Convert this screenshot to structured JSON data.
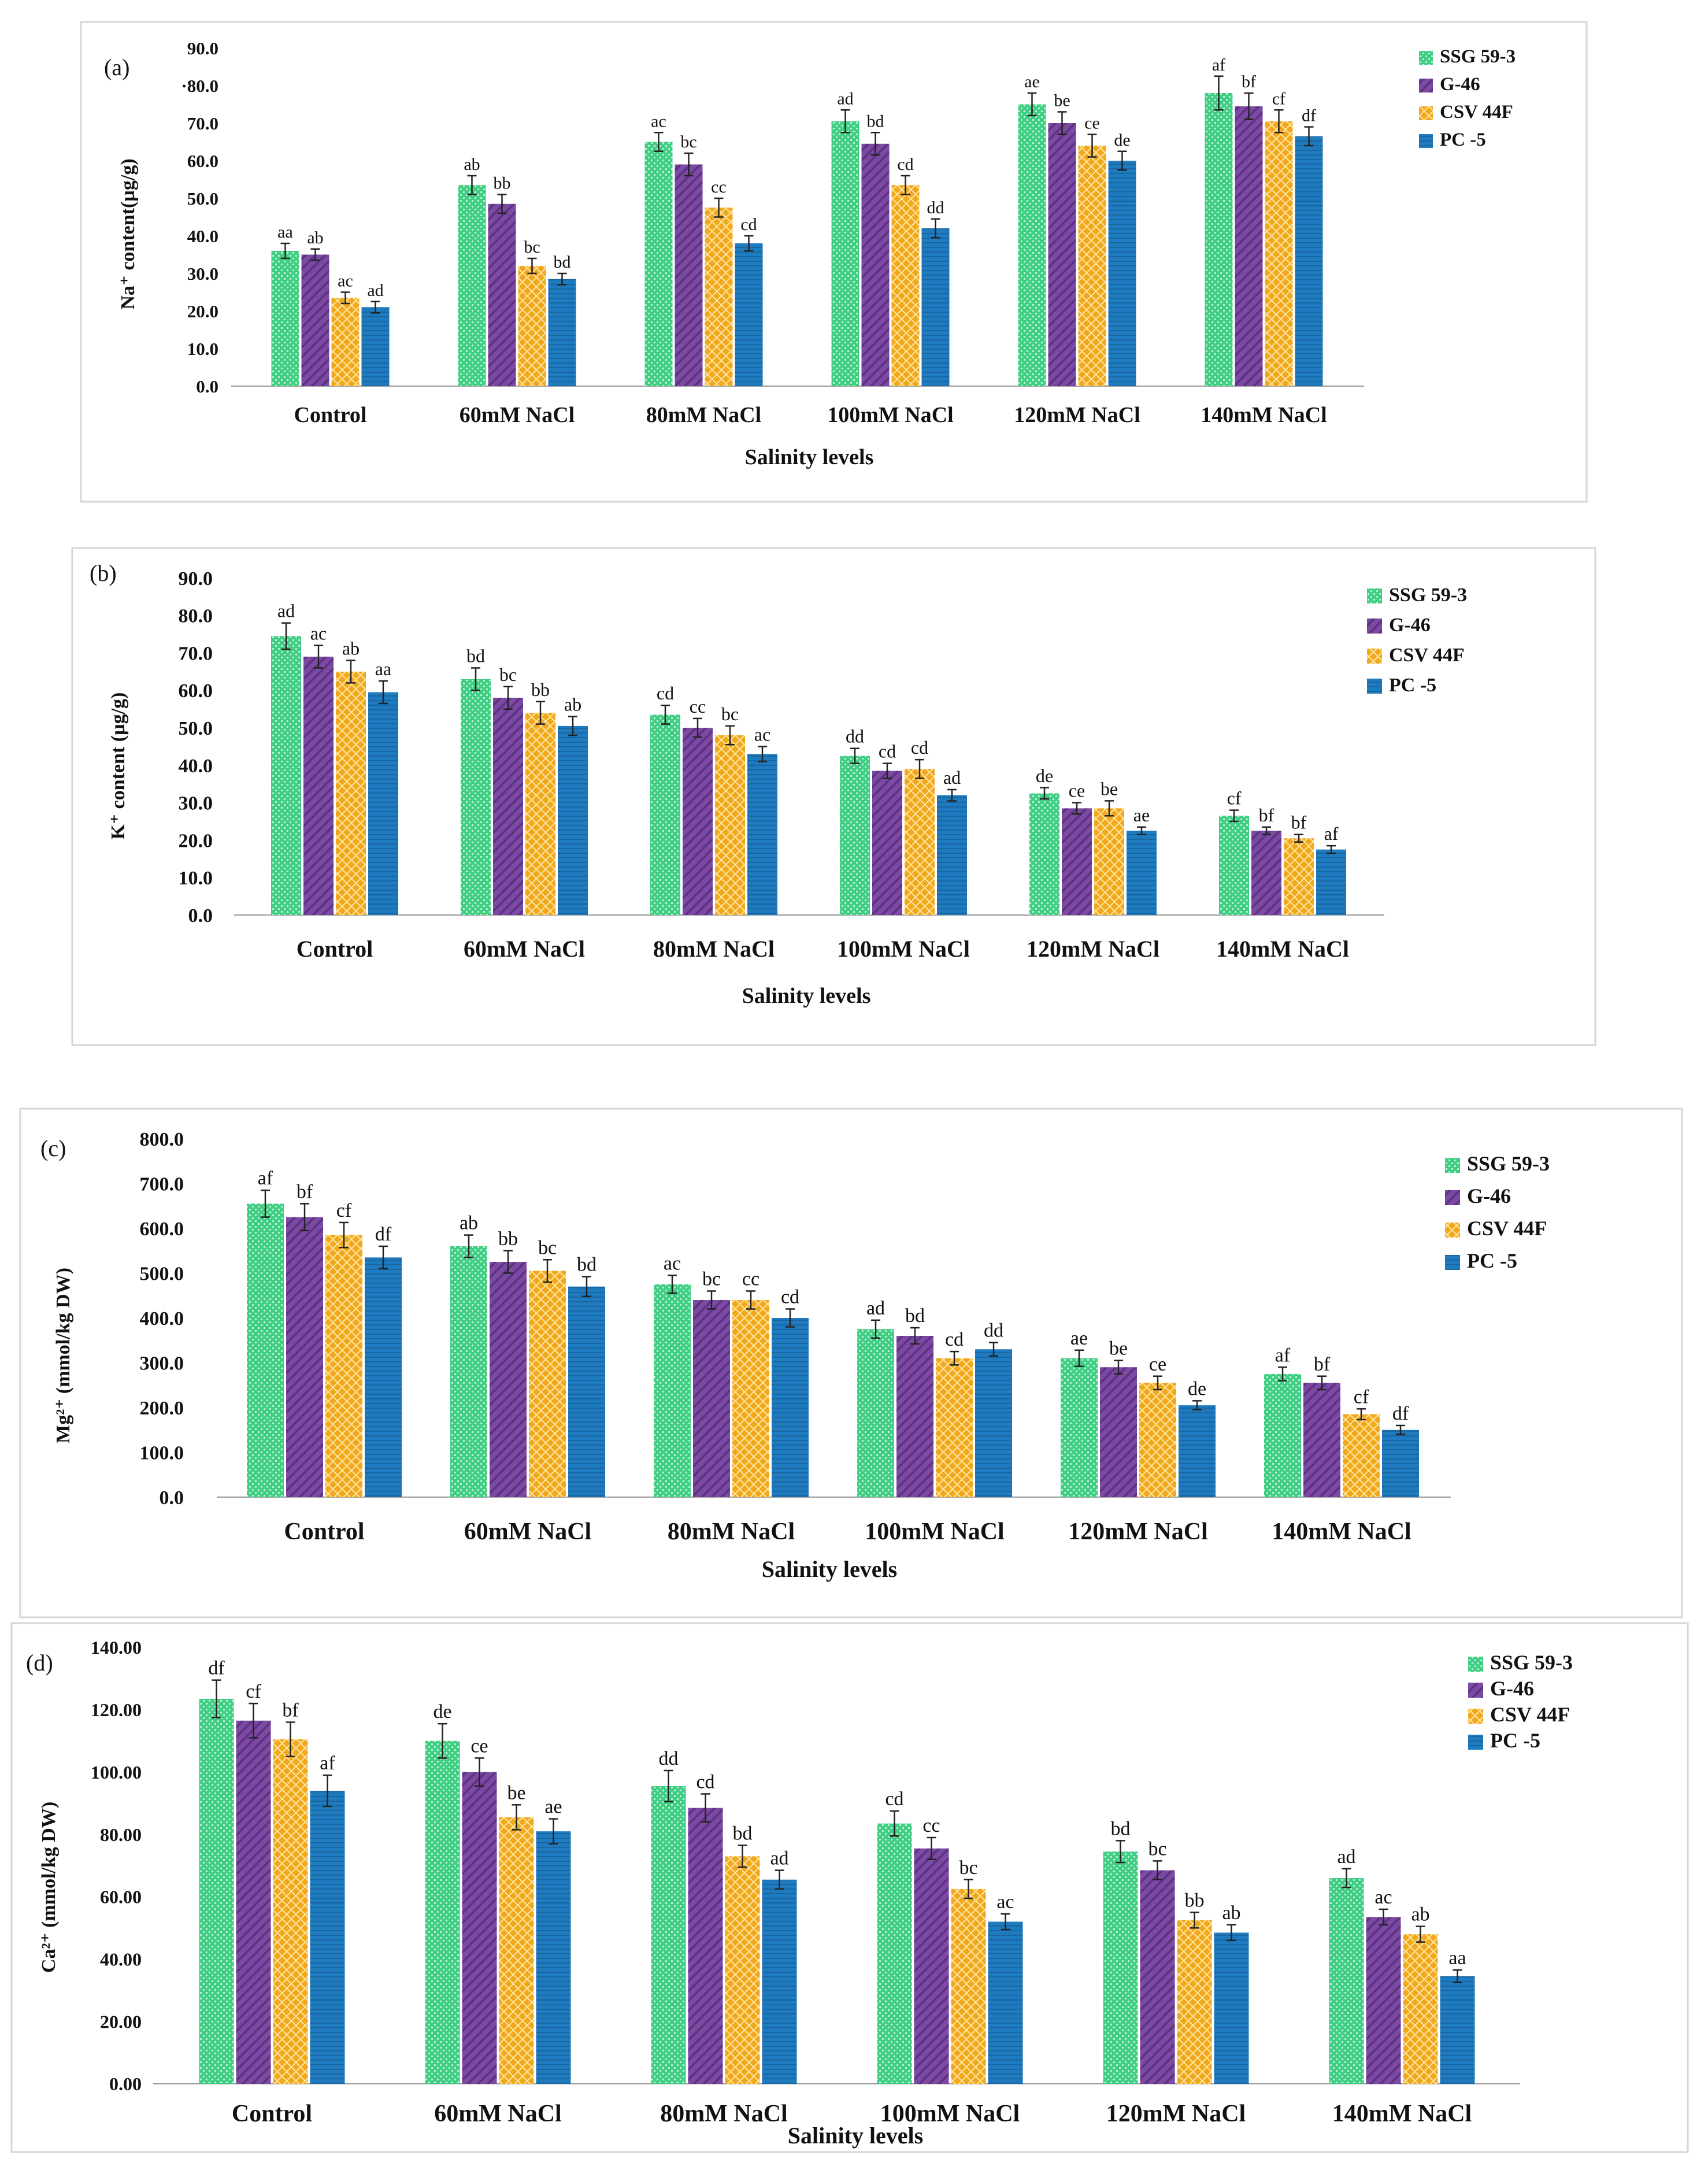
{
  "colors": {
    "SSG 59-3": "#3fce84",
    "G-46": "#7c4aa4",
    "CSV 44F": "#f2a81c",
    "PC -5": "#1f7bbf",
    "panel_border": "#d6d6d6",
    "axis": "#9a9a9a",
    "text": "#111111"
  },
  "chart_data": [
    {
      "type": "bar",
      "panel_label": "(a)",
      "title": "",
      "ylabel": "Na⁺ content(µg/g)",
      "xlabel": "Salinity levels",
      "categories": [
        "Control",
        "60mM NaCl",
        "80mM NaCl",
        "100mM NaCl",
        "120mM NaCl",
        "140mM NaCl"
      ],
      "yticks": [
        "0.0",
        "10.0",
        "20.0",
        "30.0",
        "40.0",
        "50.0",
        "60.0",
        "70.0",
        "·80.0",
        "90.0"
      ],
      "ylim": [
        0,
        90
      ],
      "legend_position": "top-right",
      "series": [
        {
          "name": "SSG 59-3",
          "values": [
            36,
            53.5,
            65,
            70.5,
            75,
            78
          ],
          "errors": [
            2,
            2.5,
            2.5,
            3,
            3,
            4.5
          ],
          "labels": [
            "aa",
            "ab",
            "ac",
            "ad",
            "ae",
            "af"
          ]
        },
        {
          "name": "G-46",
          "values": [
            35,
            48.5,
            59,
            64.5,
            70,
            74.5
          ],
          "errors": [
            1.5,
            2.5,
            3,
            3,
            3,
            3.5
          ],
          "labels": [
            "ab",
            "bb",
            "bc",
            "bd",
            "be",
            "bf"
          ]
        },
        {
          "name": "CSV 44F",
          "values": [
            23.5,
            32,
            47.5,
            53.5,
            64,
            70.5
          ],
          "errors": [
            1.5,
            2,
            2.5,
            2.5,
            3,
            3
          ],
          "labels": [
            "ac",
            "bc",
            "cc",
            "cd",
            "ce",
            "cf"
          ]
        },
        {
          "name": "PC -5",
          "values": [
            21,
            28.5,
            38,
            42,
            60,
            66.5
          ],
          "errors": [
            1.5,
            1.5,
            2,
            2.5,
            2.5,
            2.5
          ],
          "labels": [
            "ad",
            "bd",
            "cd",
            "dd",
            "de",
            "df"
          ]
        }
      ]
    },
    {
      "type": "bar",
      "panel_label": "(b)",
      "title": "",
      "ylabel": "K⁺ content (µg/g)",
      "xlabel": "Salinity levels",
      "categories": [
        "Control",
        "60mM NaCl",
        "80mM NaCl",
        "100mM NaCl",
        "120mM NaCl",
        "140mM NaCl"
      ],
      "yticks": [
        "0.0",
        "10.0",
        "20.0",
        "30.0",
        "40.0",
        "50.0",
        "60.0",
        "70.0",
        "80.0",
        "90.0"
      ],
      "ylim": [
        0,
        90
      ],
      "legend_position": "top-right",
      "series": [
        {
          "name": "SSG 59-3",
          "values": [
            74.5,
            63,
            53.5,
            42.5,
            32.5,
            26.5
          ],
          "errors": [
            3.5,
            3,
            2.5,
            2,
            1.5,
            1.5
          ],
          "labels": [
            "ad",
            "bd",
            "cd",
            "dd",
            "de",
            "cf"
          ]
        },
        {
          "name": "G-46",
          "values": [
            69,
            58,
            50,
            38.5,
            28.5,
            22.5
          ],
          "errors": [
            3,
            3,
            2.5,
            2,
            1.5,
            1
          ],
          "labels": [
            "ac",
            "bc",
            "cc",
            "cd",
            "ce",
            "bf"
          ]
        },
        {
          "name": "CSV 44F",
          "values": [
            65,
            54,
            48,
            39,
            28.5,
            20.5
          ],
          "errors": [
            3,
            3,
            2.5,
            2.5,
            2,
            1
          ],
          "labels": [
            "ab",
            "bb",
            "bc",
            "cd",
            "be",
            "bf"
          ]
        },
        {
          "name": "PC -5",
          "values": [
            59.5,
            50.5,
            43,
            32,
            22.5,
            17.5
          ],
          "errors": [
            3,
            2.5,
            2,
            1.5,
            1,
            1
          ],
          "labels": [
            "aa",
            "ab",
            "ac",
            "ad",
            "ae",
            "af"
          ]
        }
      ]
    },
    {
      "type": "bar",
      "panel_label": "(c)",
      "title": "",
      "ylabel": "Mg²⁺ (mmol/kg DW)",
      "xlabel": "Salinity levels",
      "categories": [
        "Control",
        "60mM NaCl",
        "80mM NaCl",
        "100mM NaCl",
        "120mM NaCl",
        "140mM NaCl"
      ],
      "yticks": [
        "0.0",
        "100.0",
        "200.0",
        "300.0",
        "400.0",
        "500.0",
        "600.0",
        "700.0",
        "800.0"
      ],
      "ylim": [
        0,
        800
      ],
      "legend_position": "top-right",
      "series": [
        {
          "name": "SSG 59-3",
          "values": [
            655,
            560,
            475,
            375,
            310,
            275
          ],
          "errors": [
            30,
            25,
            20,
            20,
            18,
            15
          ],
          "labels": [
            "af",
            "ab",
            "ac",
            "ad",
            "ae",
            "af"
          ]
        },
        {
          "name": "G-46",
          "values": [
            625,
            525,
            440,
            360,
            290,
            255
          ],
          "errors": [
            30,
            25,
            20,
            18,
            15,
            15
          ],
          "labels": [
            "bf",
            "bb",
            "bc",
            "bd",
            "be",
            "bf"
          ]
        },
        {
          "name": "CSV 44F",
          "values": [
            585,
            505,
            440,
            310,
            255,
            185
          ],
          "errors": [
            28,
            25,
            20,
            15,
            15,
            12
          ],
          "labels": [
            "cf",
            "bc",
            "cc",
            "cd",
            "ce",
            "cf"
          ]
        },
        {
          "name": "PC -5",
          "values": [
            535,
            470,
            400,
            330,
            205,
            150
          ],
          "errors": [
            25,
            22,
            20,
            15,
            10,
            10
          ],
          "labels": [
            "df",
            "bd",
            "cd",
            "dd",
            "de",
            "df"
          ]
        }
      ]
    },
    {
      "type": "bar",
      "panel_label": "(d)",
      "title": "",
      "ylabel": "Ca²⁺ (mmol/kg DW)",
      "xlabel": "Salinity levels",
      "categories": [
        "Control",
        "60mM NaCl",
        "80mM NaCl",
        "100mM NaCl",
        "120mM NaCl",
        "140mM NaCl"
      ],
      "yticks": [
        "0.00",
        "20.00",
        "40.00",
        "60.00",
        "80.00",
        "100.00",
        "120.00",
        "140.00"
      ],
      "ylim": [
        0,
        140
      ],
      "legend_position": "top-right",
      "series": [
        {
          "name": "SSG 59-3",
          "values": [
            123.5,
            110,
            95.5,
            83.5,
            74.5,
            66
          ],
          "errors": [
            6,
            5.5,
            5,
            4,
            3.5,
            3
          ],
          "labels": [
            "df",
            "de",
            "dd",
            "cd",
            "bd",
            "ad"
          ]
        },
        {
          "name": "G-46",
          "values": [
            116.5,
            100,
            88.5,
            75.5,
            68.5,
            53.5
          ],
          "errors": [
            5.5,
            4.5,
            4.5,
            3.5,
            3,
            2.5
          ],
          "labels": [
            "cf",
            "ce",
            "cd",
            "cc",
            "bc",
            "ac"
          ]
        },
        {
          "name": "CSV 44F",
          "values": [
            110.5,
            85.5,
            73,
            62.5,
            52.5,
            48
          ],
          "errors": [
            5.5,
            4,
            3.5,
            3,
            2.5,
            2.5
          ],
          "labels": [
            "bf",
            "be",
            "bd",
            "bc",
            "bb",
            "ab"
          ]
        },
        {
          "name": "PC -5",
          "values": [
            94,
            81,
            65.5,
            52,
            48.5,
            34.5
          ],
          "errors": [
            5,
            4,
            3,
            2.5,
            2.5,
            2
          ],
          "labels": [
            "af",
            "ae",
            "ad",
            "ac",
            "ab",
            "aa"
          ]
        }
      ]
    }
  ]
}
